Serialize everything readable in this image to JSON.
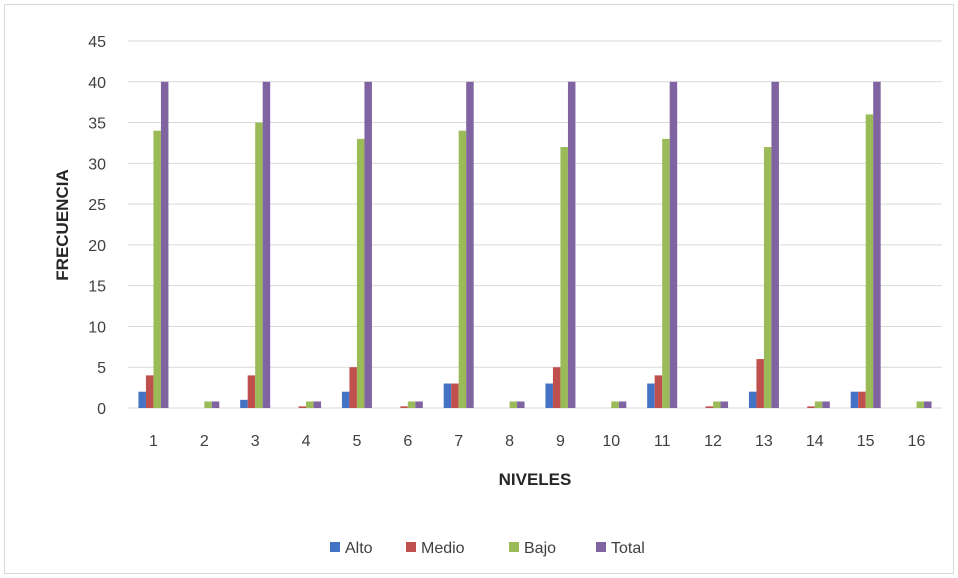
{
  "chart_data": {
    "type": "bar",
    "categories": [
      "1",
      "2",
      "3",
      "4",
      "5",
      "6",
      "7",
      "8",
      "9",
      "10",
      "11",
      "12",
      "13",
      "14",
      "15",
      "16"
    ],
    "series": [
      {
        "name": "Alto",
        "color": "#4472C4",
        "values": [
          2,
          0,
          1,
          0,
          2,
          0,
          3,
          0,
          3,
          0,
          3,
          0,
          2,
          0,
          2,
          0
        ]
      },
      {
        "name": "Medio",
        "color": "#C0504D",
        "values": [
          4,
          0,
          4,
          0.2,
          5,
          0.2,
          3,
          0,
          5,
          0,
          4,
          0.2,
          6,
          0.2,
          2,
          0
        ]
      },
      {
        "name": "Bajo",
        "color": "#9BBB59",
        "values": [
          34,
          0.8,
          35,
          0.8,
          33,
          0.8,
          34,
          0.8,
          32,
          0.8,
          33,
          0.8,
          32,
          0.8,
          36,
          0.8
        ]
      },
      {
        "name": "Total",
        "color": "#8064A2",
        "values": [
          40,
          0.8,
          40,
          0.8,
          40,
          0.8,
          40,
          0.8,
          40,
          0.8,
          40,
          0.8,
          40,
          0.8,
          40,
          0.8
        ]
      }
    ],
    "xlabel": "NIVELES",
    "ylabel": "FRECUENCIA",
    "ylim": [
      0,
      45
    ],
    "yticks": [
      "0",
      "5",
      "10",
      "15",
      "20",
      "25",
      "30",
      "35",
      "40",
      "45"
    ],
    "grid": true,
    "legend_position": "bottom"
  }
}
